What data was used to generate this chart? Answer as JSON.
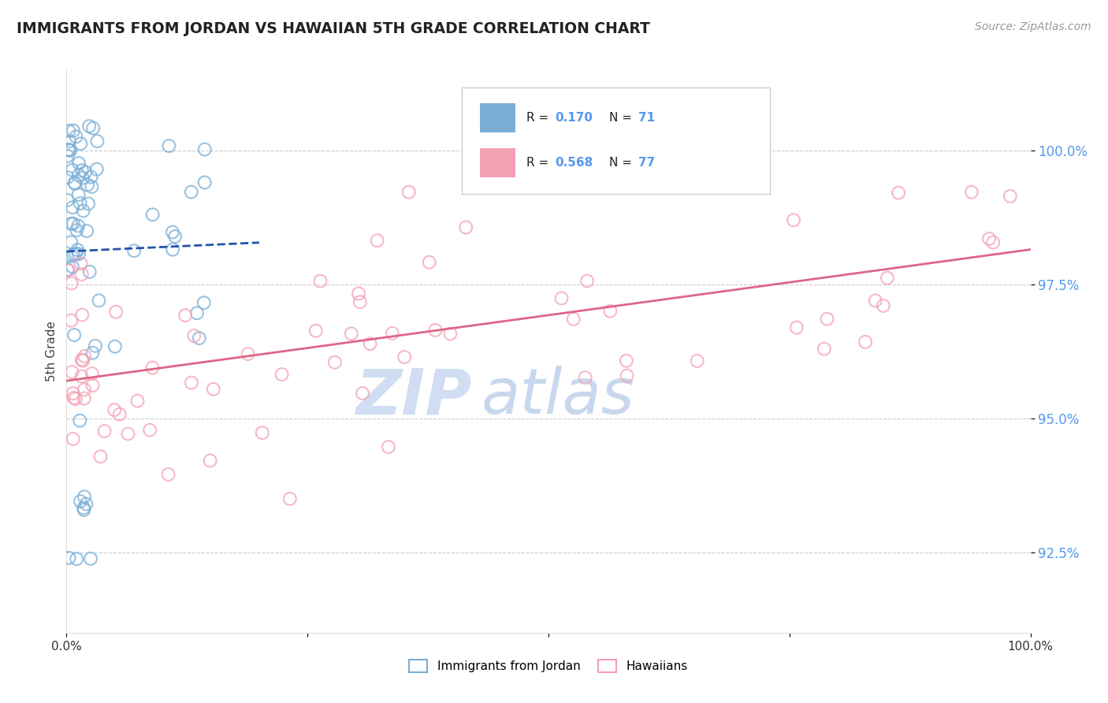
{
  "title": "IMMIGRANTS FROM JORDAN VS HAWAIIAN 5TH GRADE CORRELATION CHART",
  "source_text": "Source: ZipAtlas.com",
  "ylabel": "5th Grade",
  "xlim": [
    0.0,
    100.0
  ],
  "ylim": [
    91.0,
    101.5
  ],
  "yticks": [
    92.5,
    95.0,
    97.5,
    100.0
  ],
  "ytick_labels": [
    "92.5%",
    "95.0%",
    "97.5%",
    "100.0%"
  ],
  "blue_R": 0.17,
  "blue_N": 71,
  "pink_R": 0.568,
  "pink_N": 77,
  "blue_color": "#7AAED6",
  "pink_color": "#F4A0B5",
  "blue_edge_color": "#5588BB",
  "pink_edge_color": "#E07090",
  "blue_line_color": "#2255AA",
  "pink_line_color": "#DD6688",
  "legend_label_blue": "Immigrants from Jordan",
  "legend_label_pink": "Hawaiians",
  "watermark_zip": "ZIP",
  "watermark_atlas": "atlas",
  "background_color": "#FFFFFF",
  "grid_color": "#CCCCCC",
  "tick_color": "#5599EE",
  "title_color": "#222222",
  "source_color": "#999999"
}
